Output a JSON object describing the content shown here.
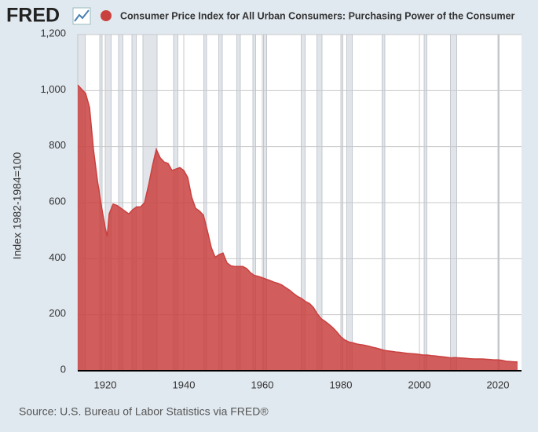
{
  "chart_data": {
    "type": "area",
    "logo": "FRED",
    "legend_label": "Consumer Price Index for All Urban Consumers: Purchasing Power of the Consumer",
    "ylabel": "Index 1982-1984=100",
    "source": "Source: U.S. Bureau of Labor Statistics via FRED®",
    "color": "#c9413f",
    "grid": true,
    "xlim": [
      1913,
      2026
    ],
    "xticks": [
      1920,
      1940,
      1960,
      1980,
      2000,
      2020
    ],
    "ylim": [
      0,
      1200
    ],
    "yticks": [
      0,
      200,
      400,
      600,
      800,
      {
        "value": 1000,
        "label": "1,000"
      },
      {
        "value": 1200,
        "label": "1,200"
      }
    ],
    "recessions": [
      [
        1913.0,
        1914.9
      ],
      [
        1918.6,
        1919.2
      ],
      [
        1920.0,
        1921.5
      ],
      [
        1923.4,
        1924.5
      ],
      [
        1926.8,
        1927.9
      ],
      [
        1929.6,
        1933.2
      ],
      [
        1937.4,
        1938.5
      ],
      [
        1945.1,
        1945.8
      ],
      [
        1948.9,
        1949.8
      ],
      [
        1953.5,
        1954.4
      ],
      [
        1957.6,
        1958.3
      ],
      [
        1960.3,
        1961.1
      ],
      [
        1969.9,
        1970.9
      ],
      [
        1973.9,
        1975.2
      ],
      [
        1980.0,
        1980.5
      ],
      [
        1981.5,
        1982.9
      ],
      [
        1990.5,
        1991.2
      ],
      [
        2001.2,
        2001.9
      ],
      [
        2007.9,
        2009.5
      ],
      [
        2020.1,
        2020.3
      ]
    ],
    "series": [
      {
        "name": "Consumer Price Index for All Urban Consumers: Purchasing Power of the Consumer",
        "x": [
          1913,
          1914,
          1915,
          1916,
          1917,
          1918,
          1919,
          1920,
          1920.5,
          1921,
          1922,
          1923,
          1924,
          1925,
          1926,
          1927,
          1928,
          1929,
          1930,
          1931,
          1932,
          1933,
          1934,
          1935,
          1936,
          1937,
          1938,
          1939,
          1940,
          1941,
          1942,
          1943,
          1944,
          1945,
          1946,
          1947,
          1948,
          1949,
          1950,
          1951,
          1952,
          1953,
          1954,
          1955,
          1956,
          1957,
          1958,
          1959,
          1960,
          1961,
          1962,
          1963,
          1964,
          1965,
          1966,
          1967,
          1968,
          1969,
          1970,
          1971,
          1972,
          1973,
          1974,
          1975,
          1976,
          1977,
          1978,
          1979,
          1980,
          1981,
          1982,
          1983,
          1984,
          1985,
          1986,
          1987,
          1988,
          1989,
          1990,
          1991,
          1992,
          1993,
          1994,
          1995,
          1996,
          1997,
          1998,
          1999,
          2000,
          2001,
          2002,
          2003,
          2004,
          2005,
          2006,
          2007,
          2008,
          2009,
          2010,
          2011,
          2012,
          2013,
          2014,
          2015,
          2016,
          2017,
          2018,
          2019,
          2020,
          2021,
          2022,
          2023,
          2024,
          2025
        ],
        "values": [
          1020,
          1005,
          990,
          940,
          790,
          680,
          590,
          510,
          480,
          560,
          595,
          590,
          580,
          570,
          560,
          575,
          585,
          585,
          600,
          660,
          730,
          790,
          760,
          745,
          740,
          715,
          720,
          725,
          715,
          690,
          620,
          580,
          570,
          555,
          500,
          440,
          405,
          415,
          420,
          385,
          375,
          372,
          372,
          372,
          365,
          350,
          340,
          337,
          332,
          327,
          322,
          316,
          312,
          306,
          296,
          287,
          275,
          265,
          258,
          247,
          240,
          226,
          203,
          186,
          176,
          165,
          153,
          138,
          121,
          110,
          103,
          100,
          96,
          93,
          91,
          88,
          84,
          81,
          77,
          73,
          71,
          69,
          67,
          66,
          64,
          62,
          61,
          60,
          58,
          56,
          56,
          54,
          53,
          51,
          50,
          48,
          46,
          47,
          46,
          45,
          44,
          43,
          42,
          42,
          42,
          41,
          40,
          39,
          39,
          37,
          34,
          33,
          32,
          31
        ]
      }
    ]
  }
}
